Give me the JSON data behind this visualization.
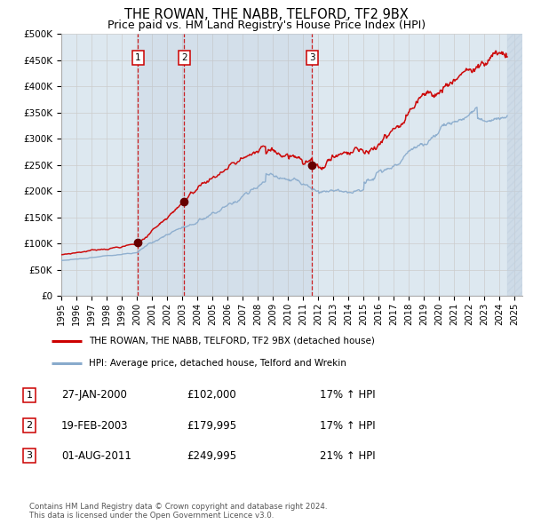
{
  "title": "THE ROWAN, THE NABB, TELFORD, TF2 9BX",
  "subtitle": "Price paid vs. HM Land Registry's House Price Index (HPI)",
  "title_fontsize": 10.5,
  "subtitle_fontsize": 9,
  "ylim": [
    0,
    500000
  ],
  "yticks": [
    0,
    50000,
    100000,
    150000,
    200000,
    250000,
    300000,
    350000,
    400000,
    450000,
    500000
  ],
  "ytick_labels": [
    "£0",
    "£50K",
    "£100K",
    "£150K",
    "£200K",
    "£250K",
    "£300K",
    "£350K",
    "£400K",
    "£450K",
    "£500K"
  ],
  "xlim_start": 1995.0,
  "xlim_end": 2025.5,
  "xtick_years": [
    1995,
    1996,
    1997,
    1998,
    1999,
    2000,
    2001,
    2002,
    2003,
    2004,
    2005,
    2006,
    2007,
    2008,
    2009,
    2010,
    2011,
    2012,
    2013,
    2014,
    2015,
    2016,
    2017,
    2018,
    2019,
    2020,
    2021,
    2022,
    2023,
    2024,
    2025
  ],
  "sale_dates": [
    2000.07,
    2003.13,
    2011.59
  ],
  "sale_prices": [
    102000,
    179995,
    249995
  ],
  "sale_labels": [
    "1",
    "2",
    "3"
  ],
  "red_line_color": "#cc0000",
  "blue_line_color": "#88aacc",
  "grid_color": "#cccccc",
  "bg_color": "#ffffff",
  "plot_bg_color": "#dde8f0",
  "legend_line1": "THE ROWAN, THE NABB, TELFORD, TF2 9BX (detached house)",
  "legend_line2": "HPI: Average price, detached house, Telford and Wrekin",
  "table_rows": [
    [
      "1",
      "27-JAN-2000",
      "£102,000",
      "17% ↑ HPI"
    ],
    [
      "2",
      "19-FEB-2003",
      "£179,995",
      "17% ↑ HPI"
    ],
    [
      "3",
      "01-AUG-2011",
      "£249,995",
      "21% ↑ HPI"
    ]
  ],
  "footer": "Contains HM Land Registry data © Crown copyright and database right 2024.\nThis data is licensed under the Open Government Licence v3.0.",
  "hatch_end_start": 2024.5
}
